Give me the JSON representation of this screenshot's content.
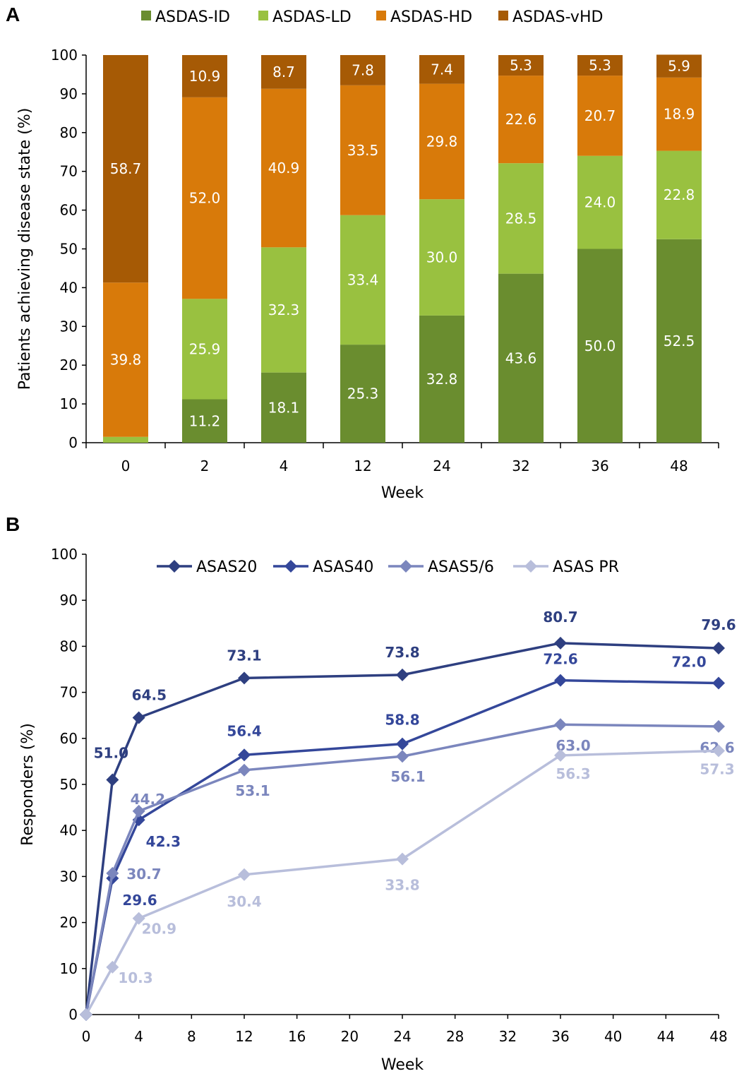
{
  "chart_data": [
    {
      "panel": "A",
      "type": "bar",
      "stacked": true,
      "xlabel": "Week",
      "ylabel": "Patients achieving disease state (%)",
      "ylim": [
        0,
        100
      ],
      "yticks": [
        0,
        10,
        20,
        30,
        40,
        50,
        60,
        70,
        80,
        90,
        100
      ],
      "categories": [
        "0",
        "2",
        "4",
        "12",
        "24",
        "32",
        "36",
        "48"
      ],
      "legend_position": "top",
      "series": [
        {
          "name": "ASDAS-ID",
          "color": "#6a8d2f",
          "values": [
            0,
            11.2,
            18.1,
            25.3,
            32.8,
            43.6,
            50.0,
            52.5
          ],
          "labels": [
            "",
            "11.2",
            "18.1",
            "25.3",
            "32.8",
            "43.6",
            "50.0",
            "52.5"
          ]
        },
        {
          "name": "ASDAS-LD",
          "color": "#99c140",
          "values": [
            1.5,
            25.9,
            32.3,
            33.4,
            30.0,
            28.5,
            24.0,
            22.8
          ],
          "labels": [
            "",
            "25.9",
            "32.3",
            "33.4",
            "30.0",
            "28.5",
            "24.0",
            "22.8"
          ]
        },
        {
          "name": "ASDAS-HD",
          "color": "#d87a0a",
          "values": [
            39.8,
            52.0,
            40.9,
            33.5,
            29.8,
            22.6,
            20.7,
            18.9
          ],
          "labels": [
            "39.8",
            "52.0",
            "40.9",
            "33.5",
            "29.8",
            "22.6",
            "20.7",
            "18.9"
          ]
        },
        {
          "name": "ASDAS-vHD",
          "color": "#a65a05",
          "values": [
            58.7,
            10.9,
            8.7,
            7.8,
            7.4,
            5.3,
            5.3,
            5.9
          ],
          "labels": [
            "58.7",
            "10.9",
            "8.7",
            "7.8",
            "7.4",
            "5.3",
            "5.3",
            "5.9"
          ]
        }
      ]
    },
    {
      "panel": "B",
      "type": "line",
      "xlabel": "Week",
      "ylabel": "Responders (%)",
      "xlim": [
        0,
        48
      ],
      "ylim": [
        0,
        100
      ],
      "xticks": [
        0,
        4,
        8,
        12,
        16,
        20,
        24,
        28,
        32,
        36,
        40,
        44,
        48
      ],
      "yticks": [
        0,
        10,
        20,
        30,
        40,
        50,
        60,
        70,
        80,
        90,
        100
      ],
      "x": [
        0,
        2,
        4,
        12,
        24,
        36,
        48
      ],
      "legend_position": "top",
      "series": [
        {
          "name": "ASAS20",
          "color": "#2e3f80",
          "values": [
            0,
            51.0,
            64.5,
            73.1,
            73.8,
            80.7,
            79.6
          ],
          "labels": [
            "",
            "51.0",
            "64.5",
            "73.1",
            "73.8",
            "80.7",
            "79.6"
          ]
        },
        {
          "name": "ASAS40",
          "color": "#34479a",
          "values": [
            0,
            29.6,
            42.3,
            56.4,
            58.8,
            72.6,
            72.0
          ],
          "labels": [
            "",
            "29.6",
            "42.3",
            "56.4",
            "58.8",
            "72.6",
            "72.0"
          ]
        },
        {
          "name": "ASAS5/6",
          "color": "#7b86bd",
          "values": [
            0,
            30.7,
            44.2,
            53.1,
            56.1,
            63.0,
            62.6
          ],
          "labels": [
            "",
            "30.7",
            "44.2",
            "53.1",
            "56.1",
            "63.0",
            "62.6"
          ]
        },
        {
          "name": "ASAS PR",
          "color": "#b8bedb",
          "values": [
            0,
            10.3,
            20.9,
            30.4,
            33.8,
            56.3,
            57.3
          ],
          "labels": [
            "",
            "10.3",
            "20.9",
            "30.4",
            "33.8",
            "56.3",
            "57.3"
          ]
        }
      ]
    }
  ]
}
